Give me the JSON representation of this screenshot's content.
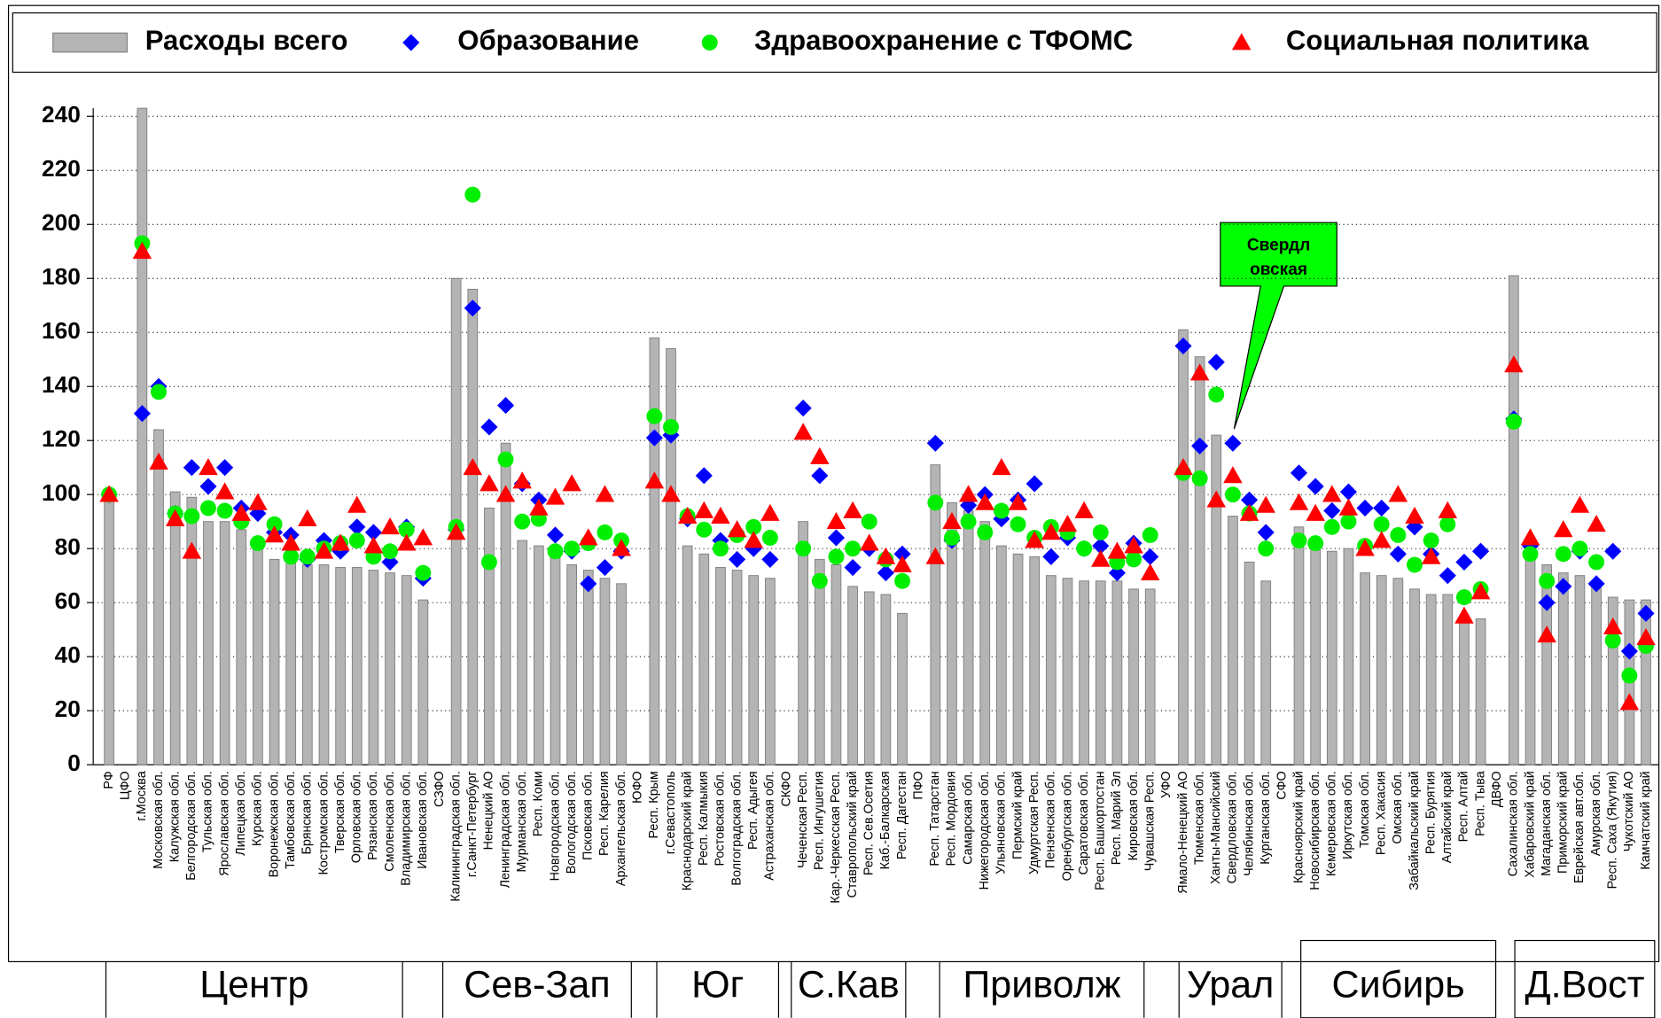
{
  "chart_data": {
    "type": "bar",
    "categories": [
      "РФ",
      "ЦФО",
      "г.Москва",
      "Московская обл.",
      "Калужская обл.",
      "Белгородская обл.",
      "Тульская обл.",
      "Ярославская обл.",
      "Липецкая обл.",
      "Курская обл.",
      "Воронежская обл.",
      "Тамбовская обл.",
      "Брянская обл.",
      "Костромская обл.",
      "Тверская обл.",
      "Орловская обл.",
      "Рязанская обл.",
      "Смоленская обл.",
      "Владимирская обл.",
      "Ивановская обл.",
      "СЗФО",
      "Калининградская обл.",
      "г.Санкт-Петербург",
      "Ненецкий АО",
      "Ленинградская обл.",
      "Мурманская обл.",
      "Респ. Коми",
      "Новгородская обл.",
      "Вологодская обл.",
      "Псковская обл.",
      "Респ. Карелия",
      "Архангельская обл.",
      "ЮФО",
      "Респ. Крым",
      "г.Севастополь",
      "Краснодарский край",
      "Респ. Калмыкия",
      "Ростовская обл.",
      "Волгоградская обл.",
      "Респ. Адыгея",
      "Астраханская обл.",
      "СКФО",
      "Чеченская Респ.",
      "Респ. Ингушетия",
      "Кар.-Черкесская Респ.",
      "Ставропольский край",
      "Респ. Сев.Осетия",
      "Каб.-Балкарская",
      "Респ. Дагестан",
      "ПФО",
      "Респ. Татарстан",
      "Респ. Мордовия",
      "Самарская обл.",
      "Нижегородская обл.",
      "Ульяновская обл.",
      "Пермский край",
      "Удмуртская Респ.",
      "Пензенская обл.",
      "Оренбургская обл.",
      "Саратовская обл.",
      "Респ. Башкортостан",
      "Респ. Марий Эл",
      "Кировская обл.",
      "Чувашская Респ.",
      "УФО",
      "Ямало-Ненецкий АО",
      "Тюменская обл.",
      "Ханты-Мансийский",
      "Свердловская обл.",
      "Челябинская обл.",
      "Курганская обл.",
      "СФО",
      "Красноярский край",
      "Новосибирская обл.",
      "Кемеровская обл.",
      "Иркутская обл.",
      "Томская обл.",
      "Респ. Хакасия",
      "Омская обл.",
      "Забайкальский край",
      "Респ. Бурятия",
      "Алтайский край",
      "Респ. Алтай",
      "Респ. Тыва",
      "ДВФО",
      "Сахалинская обл.",
      "Хабаровский край",
      "Магаданская обл.",
      "Приморский край",
      "Еврейская авт.обл.",
      "Амурская обл.",
      "Респ. Саха (Якутия)",
      "Чукотский АО",
      "Камчатский край"
    ],
    "series": [
      {
        "name": "Расходы всего",
        "marker": "bar",
        "color": "#b4b4b4",
        "values": [
          100,
          null,
          243,
          124,
          101,
          99,
          90,
          90,
          87,
          82,
          76,
          75,
          74,
          74,
          73,
          73,
          72,
          71,
          70,
          61,
          null,
          180,
          176,
          95,
          119,
          83,
          81,
          79,
          74,
          72,
          69,
          67,
          null,
          158,
          154,
          81,
          78,
          73,
          72,
          70,
          69,
          null,
          90,
          76,
          74,
          66,
          64,
          63,
          56,
          null,
          111,
          97,
          94,
          90,
          81,
          78,
          77,
          70,
          69,
          68,
          68,
          68,
          65,
          65,
          null,
          161,
          151,
          122,
          92,
          75,
          68,
          null,
          88,
          82,
          79,
          80,
          71,
          70,
          69,
          65,
          63,
          63,
          55,
          54,
          null,
          181,
          80,
          74,
          71,
          70,
          67,
          62,
          61,
          61
        ]
      },
      {
        "name": "Образование",
        "marker": "diamond",
        "color": "#0000ff",
        "values": [
          100,
          null,
          130,
          140,
          93,
          110,
          103,
          110,
          95,
          93,
          86,
          85,
          76,
          83,
          79,
          88,
          86,
          75,
          88,
          69,
          null,
          87,
          169,
          125,
          133,
          104,
          98,
          85,
          79,
          67,
          73,
          79,
          null,
          121,
          122,
          91,
          107,
          83,
          76,
          80,
          76,
          null,
          132,
          107,
          84,
          73,
          80,
          71,
          78,
          null,
          119,
          83,
          96,
          100,
          91,
          98,
          104,
          77,
          84,
          80,
          81,
          71,
          82,
          77,
          null,
          155,
          118,
          149,
          119,
          98,
          86,
          null,
          108,
          103,
          94,
          101,
          95,
          95,
          78,
          88,
          78,
          70,
          75,
          79,
          null,
          128,
          81,
          60,
          66,
          79,
          67,
          79,
          42,
          56
        ]
      },
      {
        "name": "Здравоохранение с ТФОМС",
        "marker": "circle",
        "color": "#00ee00",
        "values": [
          100,
          null,
          193,
          138,
          93,
          92,
          95,
          94,
          90,
          82,
          89,
          77,
          77,
          80,
          82,
          83,
          77,
          79,
          87,
          71,
          null,
          88,
          211,
          75,
          113,
          90,
          91,
          79,
          80,
          82,
          86,
          83,
          null,
          129,
          125,
          92,
          87,
          80,
          85,
          88,
          84,
          null,
          80,
          68,
          77,
          80,
          90,
          76,
          68,
          null,
          97,
          84,
          90,
          86,
          94,
          89,
          84,
          88,
          86,
          80,
          86,
          75,
          76,
          85,
          null,
          108,
          106,
          137,
          100,
          93,
          80,
          null,
          83,
          82,
          88,
          90,
          81,
          89,
          85,
          74,
          83,
          89,
          62,
          65,
          null,
          127,
          78,
          68,
          78,
          80,
          75,
          46,
          33,
          44
        ]
      },
      {
        "name": "Социальная политика",
        "marker": "triangle",
        "color": "#ff0000",
        "values": [
          100,
          null,
          190,
          112,
          91,
          79,
          110,
          101,
          93,
          97,
          85,
          82,
          91,
          79,
          82,
          96,
          81,
          88,
          82,
          84,
          null,
          86,
          110,
          104,
          100,
          105,
          95,
          99,
          104,
          84,
          100,
          80,
          null,
          105,
          100,
          92,
          94,
          92,
          87,
          83,
          93,
          null,
          123,
          114,
          90,
          94,
          82,
          77,
          74,
          null,
          77,
          90,
          100,
          97,
          110,
          97,
          83,
          86,
          89,
          94,
          76,
          79,
          81,
          71,
          null,
          110,
          145,
          98,
          107,
          93,
          96,
          null,
          97,
          93,
          100,
          95,
          80,
          83,
          100,
          92,
          77,
          94,
          55,
          64,
          null,
          148,
          84,
          48,
          87,
          96,
          89,
          51,
          23,
          47
        ]
      }
    ],
    "ylim": [
      0,
      243
    ],
    "yticks": [
      0,
      20,
      40,
      60,
      80,
      100,
      120,
      140,
      160,
      180,
      200,
      220,
      240
    ],
    "grid": true,
    "callout": [
      "Свердл",
      "овская"
    ],
    "regions": [
      "Центр",
      "Сев-Зап",
      "Юг",
      "С.Кав",
      "Приволж",
      "Урал",
      "Сибирь",
      "Д.Вост"
    ]
  }
}
